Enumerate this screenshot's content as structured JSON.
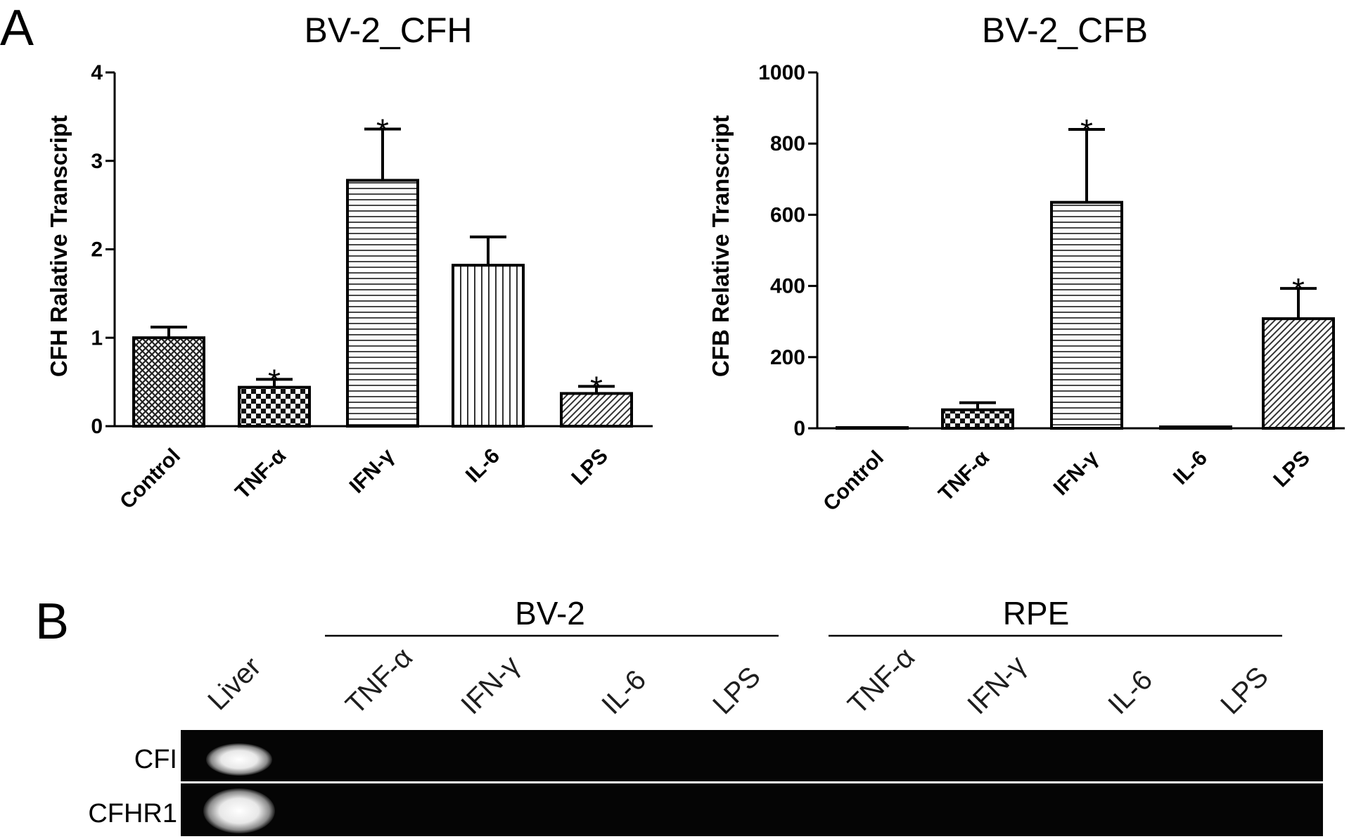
{
  "panel_a": {
    "letter": "A",
    "chart_data": [
      {
        "type": "bar",
        "title": "BV-2_CFH",
        "xlabel": "",
        "ylabel": "CFH Ralative Transcript",
        "ylim": [
          0,
          4
        ],
        "yticks": [
          "0",
          "1",
          "2",
          "3",
          "4"
        ],
        "categories": [
          "Control",
          "TNF-α",
          "IFN-γ",
          "IL-6",
          "LPS"
        ],
        "values": [
          1.0,
          0.44,
          2.78,
          1.82,
          0.37
        ],
        "errors": [
          0.12,
          0.09,
          0.58,
          0.32,
          0.08
        ],
        "significance": [
          "",
          "*",
          "*",
          "",
          "*"
        ],
        "patterns": [
          "crosshatch",
          "checker",
          "horizontal",
          "vertical",
          "diagonal"
        ]
      },
      {
        "type": "bar",
        "title": "BV-2_CFB",
        "xlabel": "",
        "ylabel": "CFB Relative Transcript",
        "ylim": [
          0,
          1000
        ],
        "yticks": [
          "0",
          "200",
          "400",
          "600",
          "800",
          "1000"
        ],
        "categories": [
          "Control",
          "TNF-α",
          "IFN-γ",
          "IL-6",
          "LPS"
        ],
        "values": [
          1,
          52,
          635,
          4,
          308
        ],
        "errors": [
          0,
          20,
          205,
          0,
          85
        ],
        "significance": [
          "",
          "",
          "*",
          "",
          "*"
        ],
        "patterns": [
          "crosshatch",
          "checker",
          "horizontal",
          "vertical",
          "diagonal"
        ]
      }
    ]
  },
  "panel_b": {
    "letter": "B",
    "groups": [
      {
        "label": "BV-2",
        "lanes": [
          "TNF-α",
          "IFN-γ",
          "IL-6",
          "LPS"
        ]
      },
      {
        "label": "RPE",
        "lanes": [
          "TNF-α",
          "IFN-γ",
          "IL-6",
          "LPS"
        ]
      }
    ],
    "first_lane": "Liver",
    "rows": [
      {
        "label": "CFI",
        "band_lane": "Liver"
      },
      {
        "label": "CFHR1",
        "band_lane": "Liver"
      }
    ],
    "colors": {
      "gel_background": "#050505",
      "band": "#f4f4f4"
    }
  }
}
